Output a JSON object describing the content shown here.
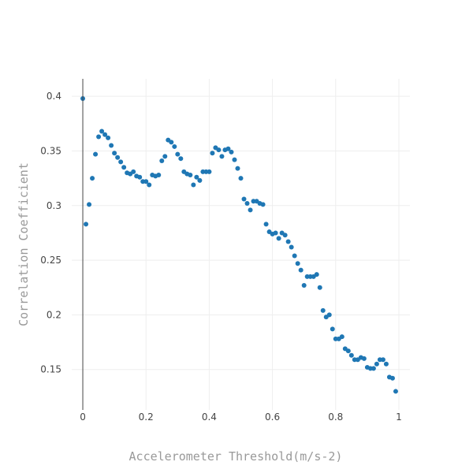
{
  "chart_data": {
    "type": "scatter",
    "title": "",
    "xlabel": "Accelerometer Threshold(m/s-2)",
    "ylabel": "Correlation Coefficient",
    "xlim": [
      -0.035,
      1.035
    ],
    "ylim": [
      0.113,
      0.416
    ],
    "xticks": [
      0,
      0.2,
      0.4,
      0.6,
      0.8,
      1
    ],
    "xtick_labels": [
      "0",
      "0.2",
      "0.4",
      "0.6",
      "0.8",
      "1"
    ],
    "yticks": [
      0.15,
      0.2,
      0.25,
      0.3,
      0.35,
      0.4
    ],
    "ytick_labels": [
      "0.15",
      "0.2",
      "0.25",
      "0.3",
      "0.35",
      "0.4"
    ],
    "grid": true,
    "legend": "none",
    "color": "#1f77b4",
    "series": [
      {
        "x": [
          0.0,
          0.01,
          0.02,
          0.03,
          0.04,
          0.05,
          0.06,
          0.07,
          0.08,
          0.09,
          0.1,
          0.11,
          0.12,
          0.13,
          0.14,
          0.15,
          0.16,
          0.17,
          0.18,
          0.19,
          0.2,
          0.21,
          0.22,
          0.23,
          0.24,
          0.25,
          0.26,
          0.27,
          0.28,
          0.29,
          0.3,
          0.31,
          0.32,
          0.33,
          0.34,
          0.35,
          0.36,
          0.37,
          0.38,
          0.39,
          0.4,
          0.41,
          0.42,
          0.43,
          0.44,
          0.45,
          0.46,
          0.47,
          0.48,
          0.49,
          0.5,
          0.51,
          0.52,
          0.53,
          0.54,
          0.55,
          0.56,
          0.57,
          0.58,
          0.59,
          0.6,
          0.61,
          0.62,
          0.63,
          0.64,
          0.65,
          0.66,
          0.67,
          0.68,
          0.69,
          0.7,
          0.71,
          0.72,
          0.73,
          0.74,
          0.75,
          0.76,
          0.77,
          0.78,
          0.79,
          0.8,
          0.81,
          0.82,
          0.83,
          0.84,
          0.85,
          0.86,
          0.87,
          0.88,
          0.89,
          0.9,
          0.91,
          0.92,
          0.93,
          0.94,
          0.95,
          0.96,
          0.97,
          0.98,
          0.99
        ],
        "y": [
          0.398,
          0.283,
          0.301,
          0.325,
          0.347,
          0.363,
          0.368,
          0.365,
          0.362,
          0.355,
          0.348,
          0.344,
          0.34,
          0.335,
          0.33,
          0.329,
          0.331,
          0.327,
          0.326,
          0.322,
          0.322,
          0.319,
          0.328,
          0.327,
          0.328,
          0.341,
          0.345,
          0.36,
          0.358,
          0.354,
          0.347,
          0.343,
          0.331,
          0.329,
          0.328,
          0.319,
          0.326,
          0.323,
          0.331,
          0.331,
          0.331,
          0.348,
          0.353,
          0.351,
          0.345,
          0.351,
          0.352,
          0.349,
          0.342,
          0.334,
          0.325,
          0.306,
          0.302,
          0.296,
          0.304,
          0.304,
          0.302,
          0.301,
          0.283,
          0.276,
          0.274,
          0.275,
          0.27,
          0.275,
          0.273,
          0.267,
          0.262,
          0.254,
          0.247,
          0.241,
          0.227,
          0.235,
          0.235,
          0.235,
          0.237,
          0.225,
          0.204,
          0.198,
          0.2,
          0.187,
          0.178,
          0.178,
          0.18,
          0.169,
          0.167,
          0.163,
          0.159,
          0.159,
          0.161,
          0.16,
          0.152,
          0.151,
          0.151,
          0.155,
          0.159,
          0.159,
          0.155,
          0.143,
          0.142,
          0.13
        ]
      }
    ]
  }
}
